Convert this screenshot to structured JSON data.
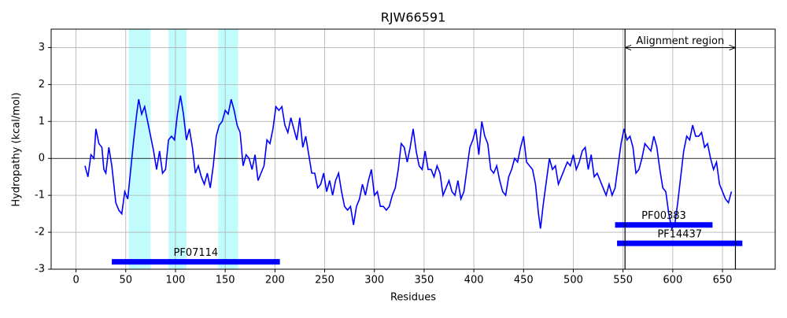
{
  "chart_data": {
    "type": "line",
    "title": "RJW66591",
    "x_label": "Residues",
    "y_label": "Hydropathy (kcal/mol)",
    "xlim": [
      -25,
      703
    ],
    "ylim": [
      -3,
      3.5
    ],
    "xticks": [
      0,
      50,
      100,
      150,
      200,
      250,
      300,
      350,
      400,
      450,
      500,
      550,
      600,
      650
    ],
    "yticks": [
      -3,
      -2,
      -1,
      0,
      1,
      2,
      3
    ],
    "grid": true,
    "shaded_regions": [
      [
        53,
        75
      ],
      [
        93,
        111
      ],
      [
        143,
        163
      ]
    ],
    "shade_color": "#c0fcfc",
    "domains": [
      {
        "name": "PF07114",
        "start": 36,
        "end": 205,
        "y": -2.8
      },
      {
        "name": "PF00383",
        "start": 542,
        "end": 640,
        "y": -1.8
      },
      {
        "name": "PF14437",
        "start": 544,
        "end": 670,
        "y": -2.3
      }
    ],
    "domain_color": "#0000ff",
    "alignment": {
      "label": "Alignment region",
      "start": 552,
      "end": 663,
      "y": 3
    },
    "series": [
      {
        "name": "Hydropathy",
        "color": "#0000ff",
        "x": [
          9,
          12,
          15,
          18,
          20,
          23,
          26,
          28,
          30,
          33,
          36,
          40,
          43,
          46,
          49,
          52,
          55,
          58,
          61,
          63,
          66,
          69,
          72,
          75,
          78,
          81,
          84,
          87,
          90,
          93,
          96,
          99,
          102,
          105,
          108,
          111,
          114,
          117,
          120,
          123,
          126,
          129,
          132,
          135,
          138,
          141,
          144,
          147,
          150,
          153,
          156,
          159,
          162,
          165,
          168,
          171,
          174,
          177,
          180,
          183,
          186,
          189,
          192,
          195,
          198,
          201,
          204,
          207,
          210,
          213,
          216,
          219,
          222,
          225,
          228,
          231,
          234,
          237,
          240,
          243,
          246,
          249,
          252,
          255,
          258,
          261,
          264,
          267,
          270,
          273,
          276,
          279,
          282,
          285,
          288,
          291,
          294,
          297,
          300,
          303,
          306,
          309,
          312,
          315,
          318,
          321,
          324,
          327,
          330,
          333,
          336,
          339,
          342,
          345,
          348,
          351,
          354,
          357,
          360,
          363,
          366,
          369,
          372,
          375,
          378,
          381,
          384,
          387,
          390,
          393,
          396,
          399,
          402,
          405,
          408,
          411,
          414,
          417,
          420,
          423,
          426,
          429,
          432,
          435,
          438,
          441,
          444,
          447,
          450,
          453,
          456,
          459,
          462,
          465,
          467,
          470,
          473,
          476,
          479,
          482,
          485,
          488,
          491,
          494,
          497,
          500,
          503,
          506,
          509,
          512,
          515,
          518,
          521,
          524,
          527,
          530,
          533,
          536,
          539,
          542,
          545,
          548,
          551,
          554,
          557,
          560,
          563,
          566,
          569,
          572,
          575,
          578,
          581,
          584,
          587,
          590,
          593,
          596,
          599,
          602,
          605,
          608,
          611,
          614,
          617,
          620,
          623,
          626,
          629,
          632,
          635,
          638,
          641,
          644,
          647,
          650,
          653,
          656,
          659
        ],
        "values": [
          -0.2,
          -0.5,
          0.1,
          0.0,
          0.8,
          0.4,
          0.3,
          -0.3,
          -0.4,
          0.3,
          -0.2,
          -1.2,
          -1.4,
          -1.5,
          -0.9,
          -1.1,
          -0.3,
          0.5,
          1.2,
          1.6,
          1.2,
          1.4,
          1.0,
          0.6,
          0.2,
          -0.3,
          0.2,
          -0.4,
          -0.3,
          0.5,
          0.6,
          0.5,
          1.2,
          1.7,
          1.2,
          0.5,
          0.8,
          0.3,
          -0.4,
          -0.2,
          -0.5,
          -0.7,
          -0.4,
          -0.8,
          -0.2,
          0.6,
          0.9,
          1.0,
          1.3,
          1.2,
          1.6,
          1.3,
          0.9,
          0.7,
          -0.2,
          0.1,
          0.0,
          -0.3,
          0.1,
          -0.6,
          -0.4,
          -0.2,
          0.5,
          0.4,
          0.8,
          1.4,
          1.3,
          1.4,
          0.9,
          0.7,
          1.1,
          0.8,
          0.5,
          1.1,
          0.3,
          0.6,
          0.1,
          -0.4,
          -0.4,
          -0.8,
          -0.7,
          -0.4,
          -0.9,
          -0.6,
          -1.0,
          -0.6,
          -0.4,
          -0.9,
          -1.3,
          -1.4,
          -1.3,
          -1.8,
          -1.3,
          -1.1,
          -0.7,
          -1.0,
          -0.6,
          -0.3,
          -1.0,
          -0.9,
          -1.3,
          -1.3,
          -1.4,
          -1.3,
          -1.0,
          -0.8,
          -0.3,
          0.4,
          0.3,
          -0.1,
          0.3,
          0.8,
          0.2,
          -0.2,
          -0.3,
          0.2,
          -0.3,
          -0.3,
          -0.5,
          -0.2,
          -0.4,
          -1.0,
          -0.8,
          -0.6,
          -0.9,
          -1.0,
          -0.6,
          -1.1,
          -0.9,
          -0.3,
          0.3,
          0.5,
          0.8,
          0.1,
          1.0,
          0.6,
          0.4,
          -0.3,
          -0.4,
          -0.2,
          -0.6,
          -0.9,
          -1.0,
          -0.5,
          -0.3,
          0.0,
          -0.1,
          0.3,
          0.6,
          -0.1,
          -0.2,
          -0.3,
          -0.7,
          -1.5,
          -1.9,
          -1.2,
          -0.6,
          0.0,
          -0.3,
          -0.2,
          -0.7,
          -0.5,
          -0.3,
          -0.1,
          -0.2,
          0.1,
          -0.3,
          -0.1,
          0.2,
          0.3,
          -0.3,
          0.1,
          -0.5,
          -0.4,
          -0.6,
          -0.8,
          -1.0,
          -0.7,
          -1.0,
          -0.8,
          -0.2,
          0.4,
          0.8,
          0.5,
          0.6,
          0.3,
          -0.4,
          -0.3,
          0.0,
          0.4,
          0.3,
          0.2,
          0.6,
          0.3,
          -0.3,
          -0.8,
          -0.9,
          -1.5,
          -1.9,
          -1.8,
          -1.2,
          -0.5,
          0.2,
          0.6,
          0.5,
          0.9,
          0.6,
          0.6,
          0.7,
          0.3,
          0.4,
          0.0,
          -0.3,
          -0.1,
          -0.7,
          -0.9,
          -1.1,
          -1.2,
          -0.9
        ]
      }
    ]
  }
}
